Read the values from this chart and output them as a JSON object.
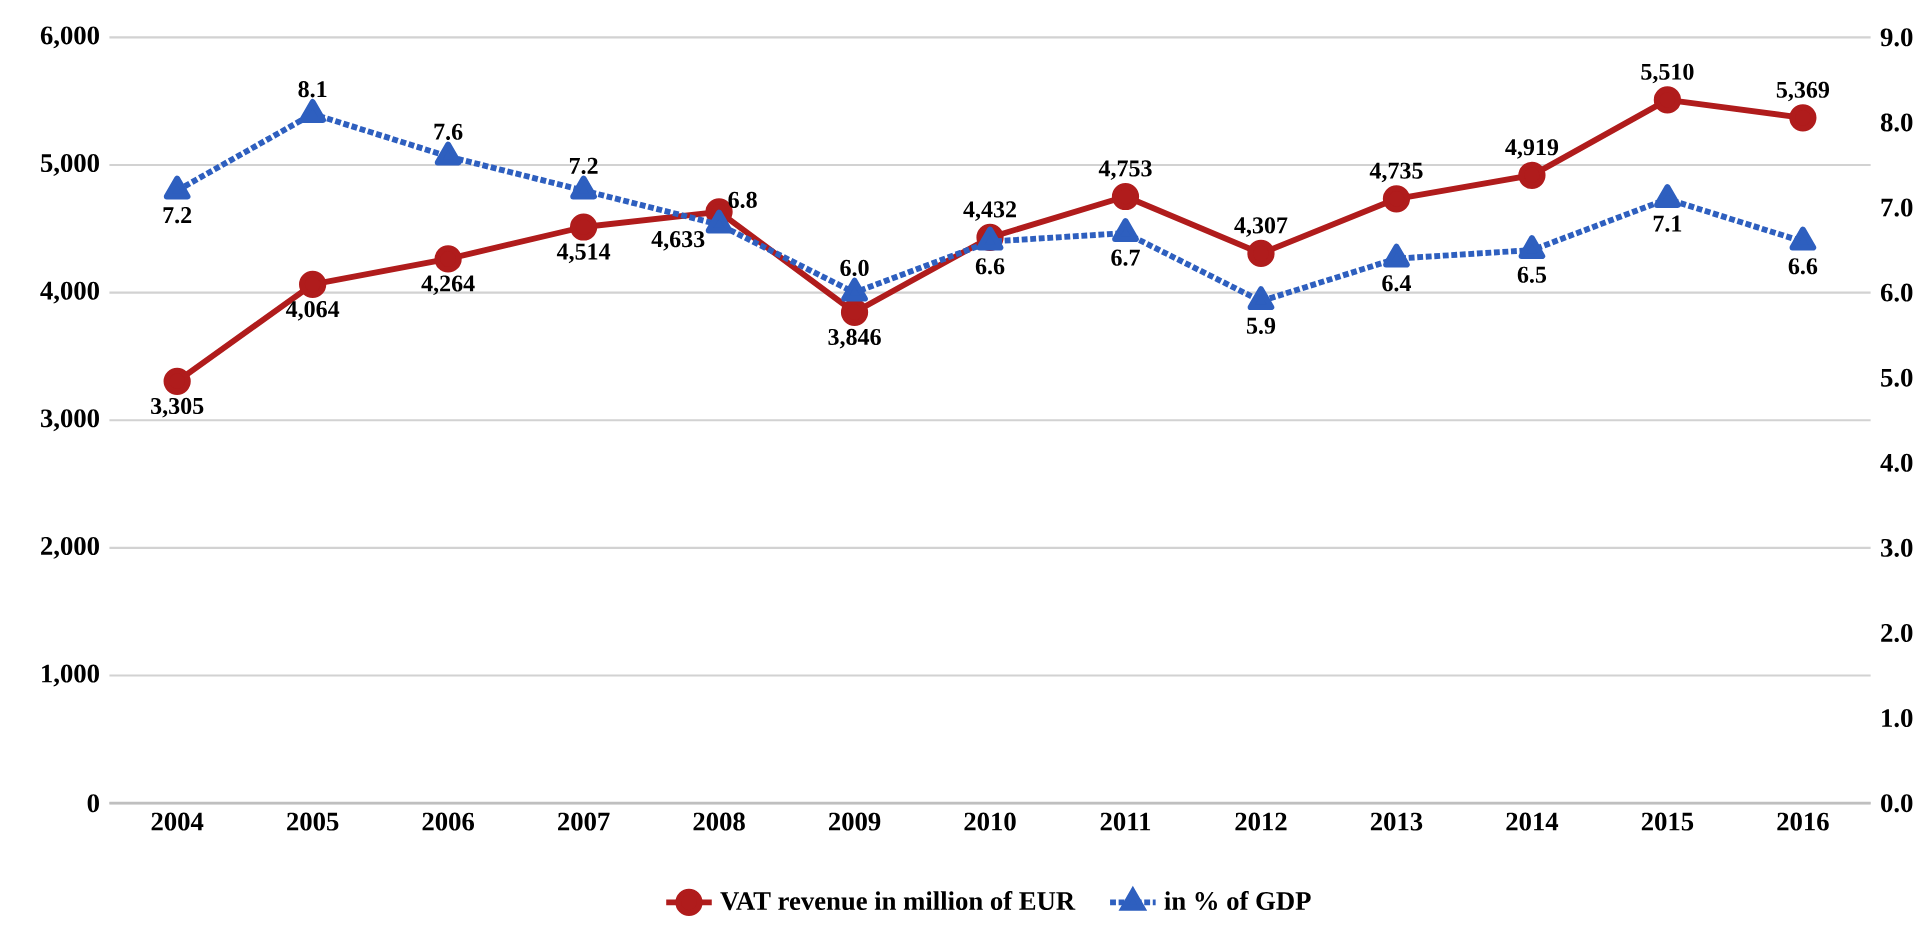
{
  "chart_data": {
    "type": "line",
    "categories": [
      "2004",
      "2005",
      "2006",
      "2007",
      "2008",
      "2009",
      "2010",
      "2011",
      "2012",
      "2013",
      "2014",
      "2015",
      "2016"
    ],
    "series": [
      {
        "name": "VAT revenue in million of EUR",
        "color": "#b01c1c",
        "marker": "circle",
        "line_style": "solid",
        "values": [
          3305,
          4064,
          4264,
          4514,
          4633,
          3846,
          4432,
          4753,
          4307,
          4735,
          4919,
          5510,
          5369
        ],
        "value_labels": [
          "3,305",
          "4,064",
          "4,264",
          "4,514",
          "4,633",
          "3,846",
          "4,432",
          "4,753",
          "4,307",
          "4,735",
          "4,919",
          "5,510",
          "5,369"
        ]
      },
      {
        "name": "in % of GDP",
        "color": "#2e5fbf",
        "marker": "triangle",
        "line_style": "dotted",
        "axis": "y2",
        "values": [
          7.2,
          8.1,
          7.6,
          7.2,
          6.8,
          6.0,
          6.6,
          6.7,
          5.9,
          6.4,
          6.5,
          7.1,
          6.6
        ],
        "value_labels": [
          "7.2",
          "8.1",
          "7.6",
          "7.2",
          "6.8",
          "6.0",
          "6.6",
          "6.7",
          "5.9",
          "6.4",
          "6.5",
          "7.1",
          "6.6"
        ]
      }
    ],
    "ylim": [
      0,
      6000
    ],
    "yticks": [
      {
        "value": 0,
        "label": "0"
      },
      {
        "value": 1000,
        "label": "1,000"
      },
      {
        "value": 2000,
        "label": "2,000"
      },
      {
        "value": 3000,
        "label": "3,000"
      },
      {
        "value": 4000,
        "label": "4,000"
      },
      {
        "value": 5000,
        "label": "5,000"
      },
      {
        "value": 6000,
        "label": "6,000"
      }
    ],
    "y2lim": [
      0,
      9
    ],
    "y2ticks": [
      {
        "value": 0,
        "label": "0.0"
      },
      {
        "value": 1,
        "label": "1.0"
      },
      {
        "value": 2,
        "label": "2.0"
      },
      {
        "value": 3,
        "label": "3.0"
      },
      {
        "value": 4,
        "label": "4.0"
      },
      {
        "value": 5,
        "label": "5.0"
      },
      {
        "value": 6,
        "label": "6.0"
      },
      {
        "value": 7,
        "label": "7.0"
      },
      {
        "value": 8,
        "label": "8.0"
      },
      {
        "value": 9,
        "label": "9.0"
      }
    ],
    "grid": "y",
    "legend": "bottom"
  }
}
